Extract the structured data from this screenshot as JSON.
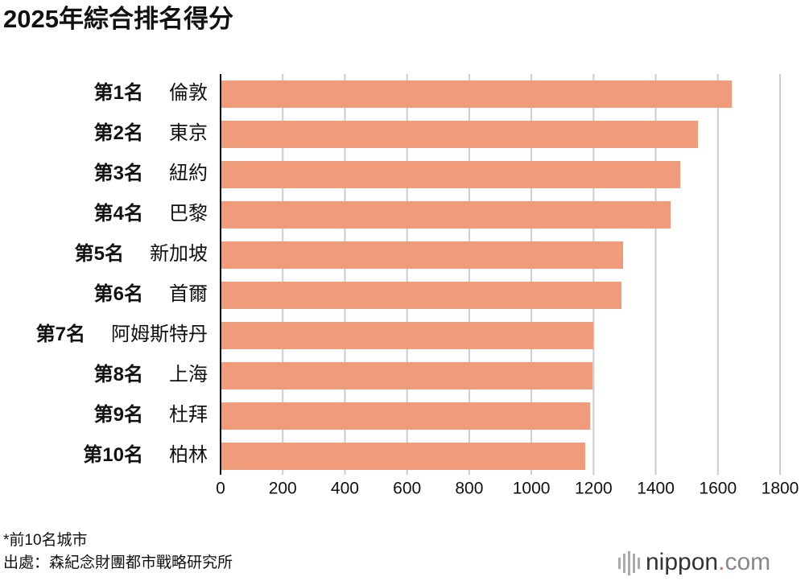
{
  "chart_data": {
    "type": "bar",
    "orientation": "horizontal",
    "title": "2025年綜合排名得分",
    "ranks": [
      "第1名",
      "第2名",
      "第3名",
      "第4名",
      "第5名",
      "第6名",
      "第7名",
      "第8名",
      "第9名",
      "第10名"
    ],
    "categories": [
      "倫敦",
      "東京",
      "紐約",
      "巴黎",
      "新加坡",
      "首爾",
      "阿姆斯特丹",
      "上海",
      "杜拜",
      "柏林"
    ],
    "values": [
      1645,
      1536,
      1479,
      1448,
      1295,
      1290,
      1199,
      1197,
      1189,
      1173
    ],
    "color": "#f09c7c",
    "xlim": [
      0,
      1800
    ],
    "xticks": [
      0,
      200,
      400,
      600,
      800,
      1000,
      1200,
      1400,
      1600,
      1800
    ],
    "grid": true,
    "note": "*前10名城市",
    "source": "出處：森紀念財團都市戰略研究所",
    "logo": [
      "nippon",
      ".",
      "com"
    ]
  }
}
